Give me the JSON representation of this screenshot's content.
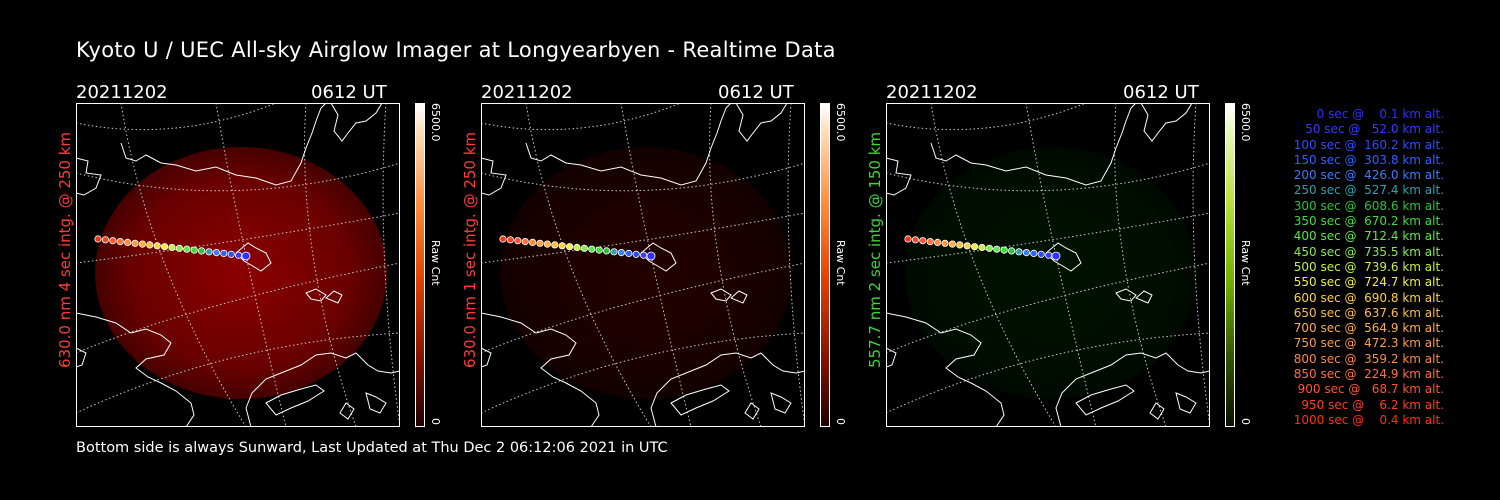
{
  "title": "Kyoto U / UEC All-sky Airglow Imager at Longyearbyen - Realtime Data",
  "panels": [
    {
      "date": "20211202",
      "time": "0612 UT",
      "label": "630.0 nm 4 sec intg. @ 250 km",
      "label_color": "#ff3b3b",
      "cb_max": "6500.0",
      "cb_min": "0",
      "cb_unit": "Raw Cnt",
      "tint": "#ff0000",
      "glow": 0.55
    },
    {
      "date": "20211202",
      "time": "0612 UT",
      "label": "630.0 nm 1 sec intg. @ 250 km",
      "label_color": "#ff3b3b",
      "cb_max": "6500.0",
      "cb_min": "0",
      "cb_unit": "Raw Cnt",
      "tint": "#ff0000",
      "glow": 0.14
    },
    {
      "date": "20211202",
      "time": "0612 UT",
      "label": "557.7 nm 2 sec intg. @ 150 km",
      "label_color": "#39d839",
      "cb_max": "6500.0",
      "cb_min": "0",
      "cb_unit": "Raw Cnt",
      "tint": "#00ff00",
      "glow": 0.07
    }
  ],
  "legend": [
    {
      "text": "   0 sec @    0.1 km alt.",
      "color": "#3030ff"
    },
    {
      "text": "  50 sec @   52.0 km alt.",
      "color": "#3a3aff"
    },
    {
      "text": " 100 sec @  160.2 km alt.",
      "color": "#2b4fff"
    },
    {
      "text": " 150 sec @  303.8 km alt.",
      "color": "#2b62ff"
    },
    {
      "text": " 200 sec @  426.0 km alt.",
      "color": "#3b7cff"
    },
    {
      "text": " 250 sec @  527.4 km alt.",
      "color": "#2fa0ae"
    },
    {
      "text": " 300 sec @  608.6 km alt.",
      "color": "#2ec040"
    },
    {
      "text": " 350 sec @  670.2 km alt.",
      "color": "#3ddd3d"
    },
    {
      "text": " 400 sec @  712.4 km alt.",
      "color": "#5ce64a"
    },
    {
      "text": " 450 sec @  735.5 km alt.",
      "color": "#86ea50"
    },
    {
      "text": " 500 sec @  739.6 km alt.",
      "color": "#c4f044"
    },
    {
      "text": " 550 sec @  724.7 km alt.",
      "color": "#efef3a"
    },
    {
      "text": " 600 sec @  690.8 km alt.",
      "color": "#ffd23a"
    },
    {
      "text": " 650 sec @  637.6 km alt.",
      "color": "#ffbe3a"
    },
    {
      "text": " 700 sec @  564.9 km alt.",
      "color": "#ffae40"
    },
    {
      "text": " 750 sec @  472.3 km alt.",
      "color": "#ff9c40"
    },
    {
      "text": " 800 sec @  359.2 km alt.",
      "color": "#ff8a40"
    },
    {
      "text": " 850 sec @  224.9 km alt.",
      "color": "#ff7040"
    },
    {
      "text": " 900 sec @   68.7 km alt.",
      "color": "#ff5530"
    },
    {
      "text": " 950 sec @    6.2 km alt.",
      "color": "#ff4020"
    },
    {
      "text": "1000 sec @    0.4 km alt.",
      "color": "#ff3010"
    }
  ],
  "footer": "Bottom side is always Sunward, Last Updated at Thu Dec  2 06:12:06 2021 in UTC"
}
